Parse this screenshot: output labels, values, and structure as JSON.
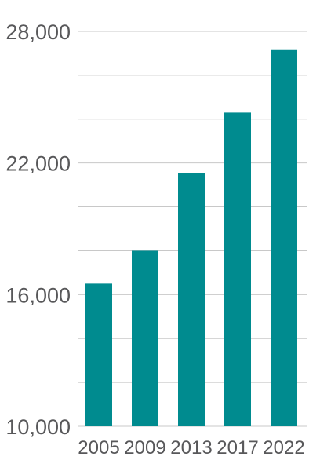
{
  "chart_data": {
    "type": "bar",
    "categories": [
      "2005",
      "2009",
      "2013",
      "2017",
      "2022"
    ],
    "values": [
      16500,
      18000,
      21550,
      24300,
      27150
    ],
    "ylim": [
      10000,
      28000
    ],
    "y_gridlines": [
      10000,
      12000,
      14000,
      16000,
      18000,
      20000,
      22000,
      24000,
      26000,
      28000
    ],
    "y_tick_values": [
      10000,
      16000,
      22000,
      28000
    ],
    "y_tick_labels": [
      "10,000",
      "16,000",
      "22,000",
      "28,000"
    ],
    "grid": true,
    "legend": "none"
  },
  "colors": {
    "bar": "#008b8f",
    "grid": "#c8c8c8",
    "axis_text": "#58585a"
  }
}
